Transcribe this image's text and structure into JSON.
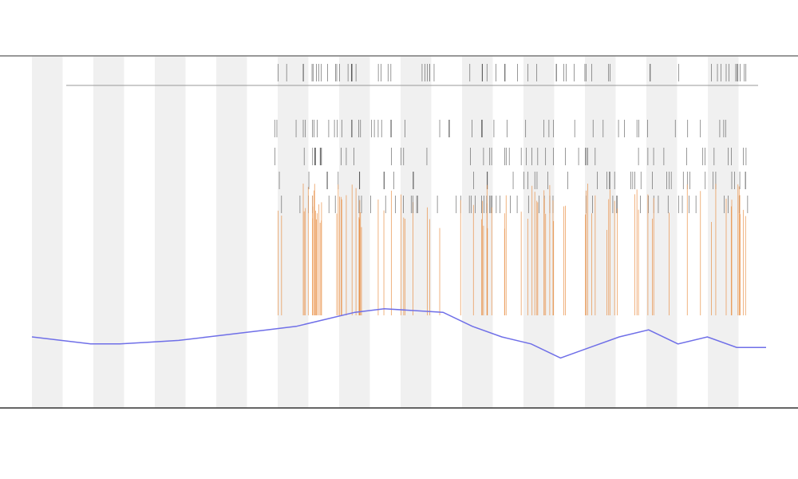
{
  "chart_data": {
    "type": "line",
    "series": [
      {
        "color": "#6f6fe8",
        "values": [
          20,
          19,
          18,
          18,
          18.5,
          19,
          20,
          21,
          22,
          23,
          25,
          27,
          28,
          27.5,
          27,
          23,
          20,
          18,
          14,
          17,
          20,
          22,
          18,
          20,
          17,
          17
        ]
      }
    ],
    "ylim": [
      0,
      100
    ]
  }
}
